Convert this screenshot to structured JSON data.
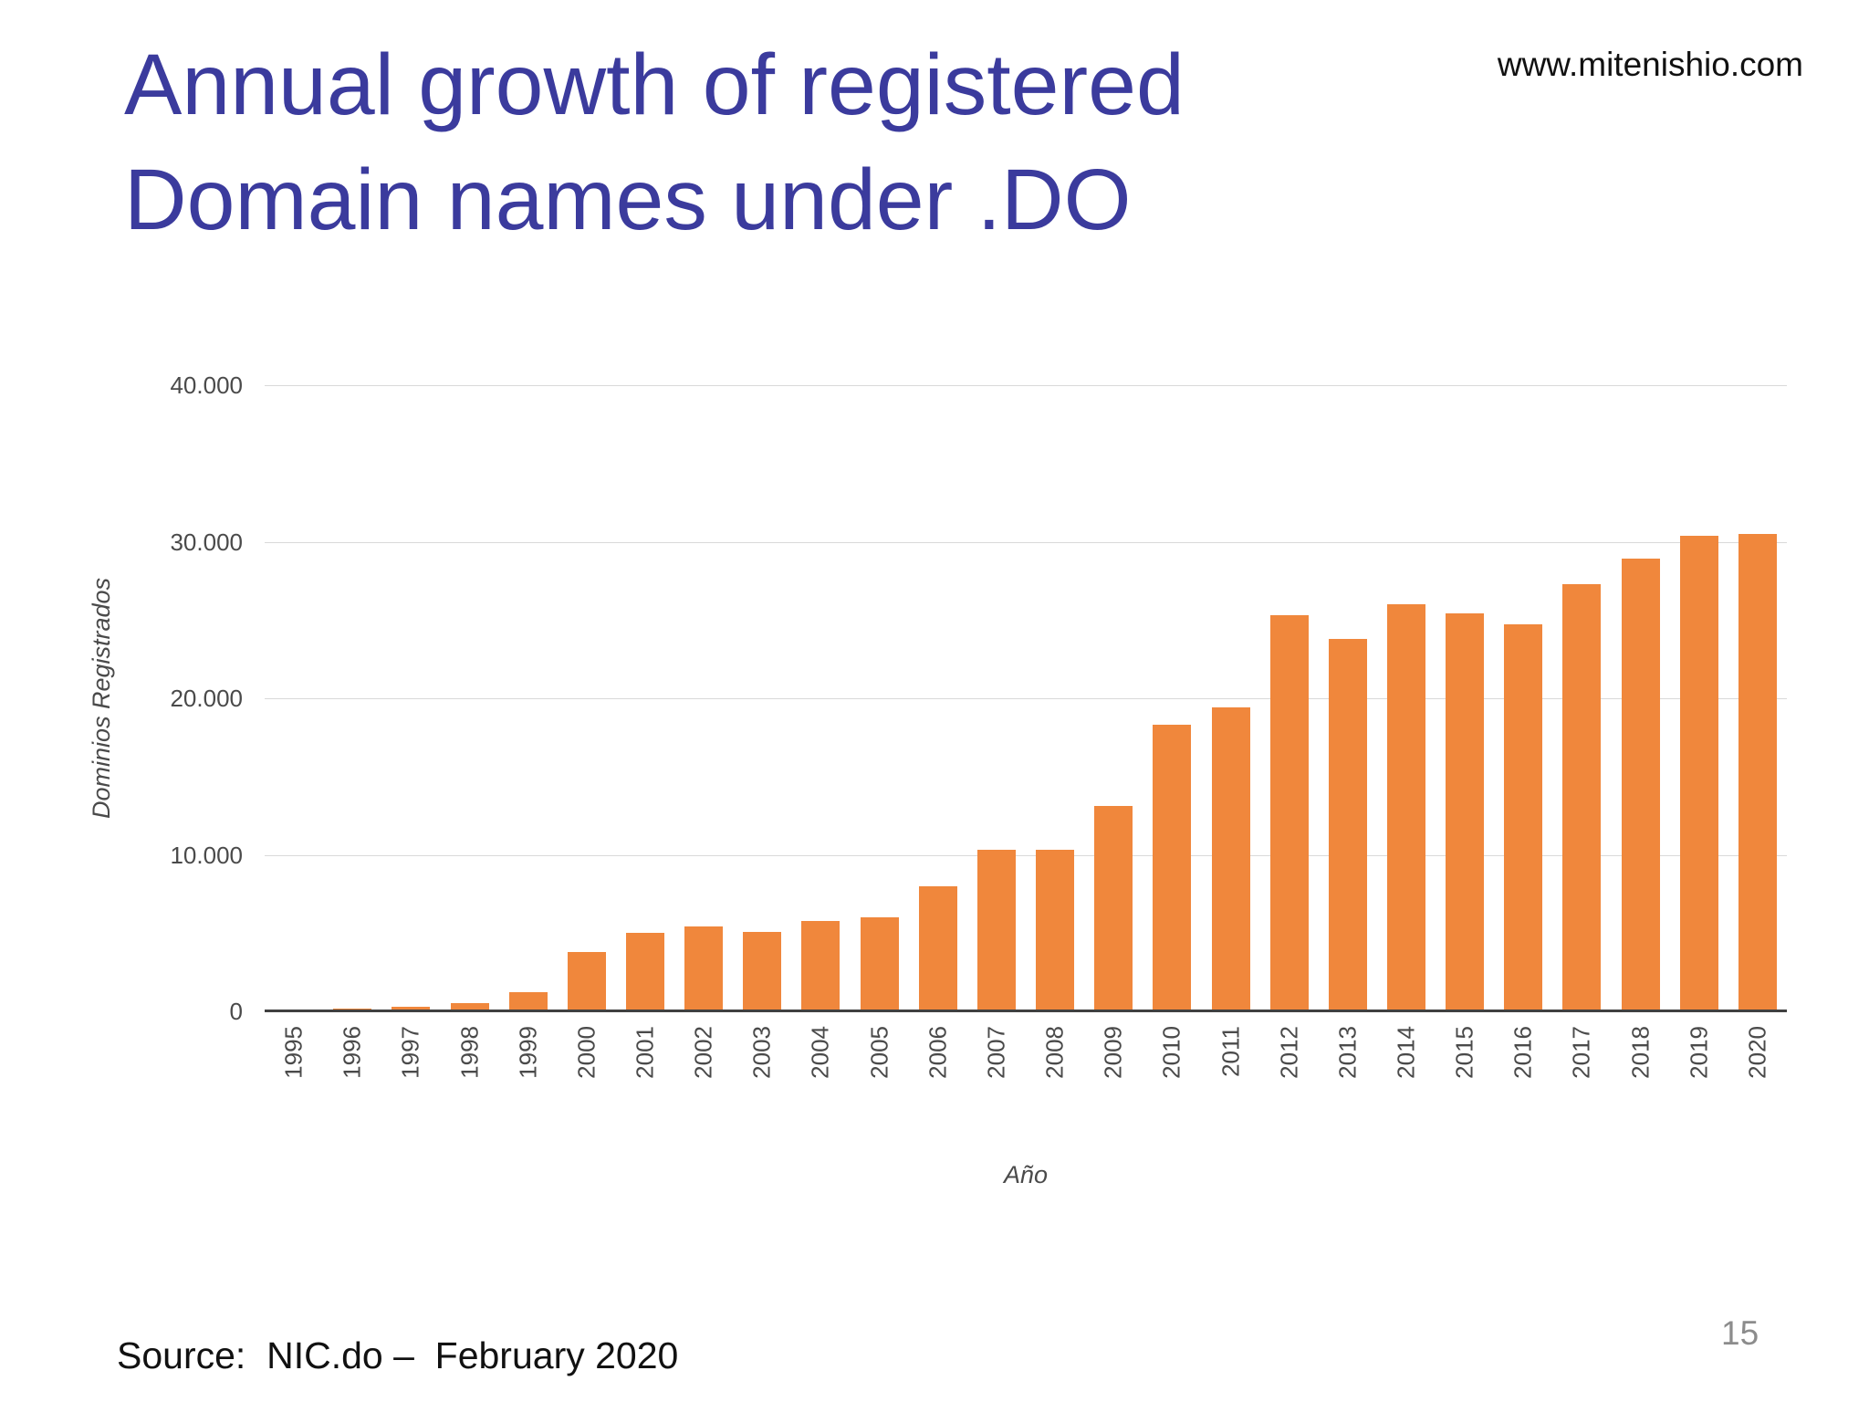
{
  "page": {
    "title_line1": "Annual growth of registered",
    "title_line2": "Domain names under .DO",
    "website": "www.mitenishio.com",
    "source_text": "Source:  NIC.do –  February 2020",
    "page_number": "15"
  },
  "colors": {
    "title_text": "#3B3B9D",
    "bar": "#F0873C",
    "gridline": "#D9D9D9",
    "axis_line": "#404040",
    "tick_text": "#4A4A4A",
    "page_number_text": "#8C8C8C"
  },
  "chart_data": {
    "type": "bar",
    "title": "",
    "xlabel": "Año",
    "ylabel": "Dominios Registrados",
    "categories": [
      "1995",
      "1996",
      "1997",
      "1998",
      "1999",
      "2000",
      "2001",
      "2002",
      "2003",
      "2004",
      "2005",
      "2006",
      "2007",
      "2008",
      "2009",
      "2010",
      "2011",
      "2012",
      "2013",
      "2014",
      "2015",
      "2016",
      "2017",
      "2018",
      "2019",
      "2020"
    ],
    "values": [
      100,
      200,
      300,
      500,
      1200,
      3800,
      5000,
      5400,
      5100,
      5800,
      6000,
      8000,
      10300,
      10300,
      13100,
      18300,
      19400,
      25300,
      23800,
      26000,
      25400,
      24700,
      27300,
      28900,
      30400,
      30500
    ],
    "ylim": [
      0,
      40000
    ],
    "yticks": [
      0,
      10000,
      20000,
      30000,
      40000
    ],
    "ytick_labels": [
      "0",
      "10.000",
      "20.000",
      "30.000",
      "40.000"
    ],
    "grid": "horizontal",
    "legend": "none",
    "bar_color": "#F0873C"
  }
}
